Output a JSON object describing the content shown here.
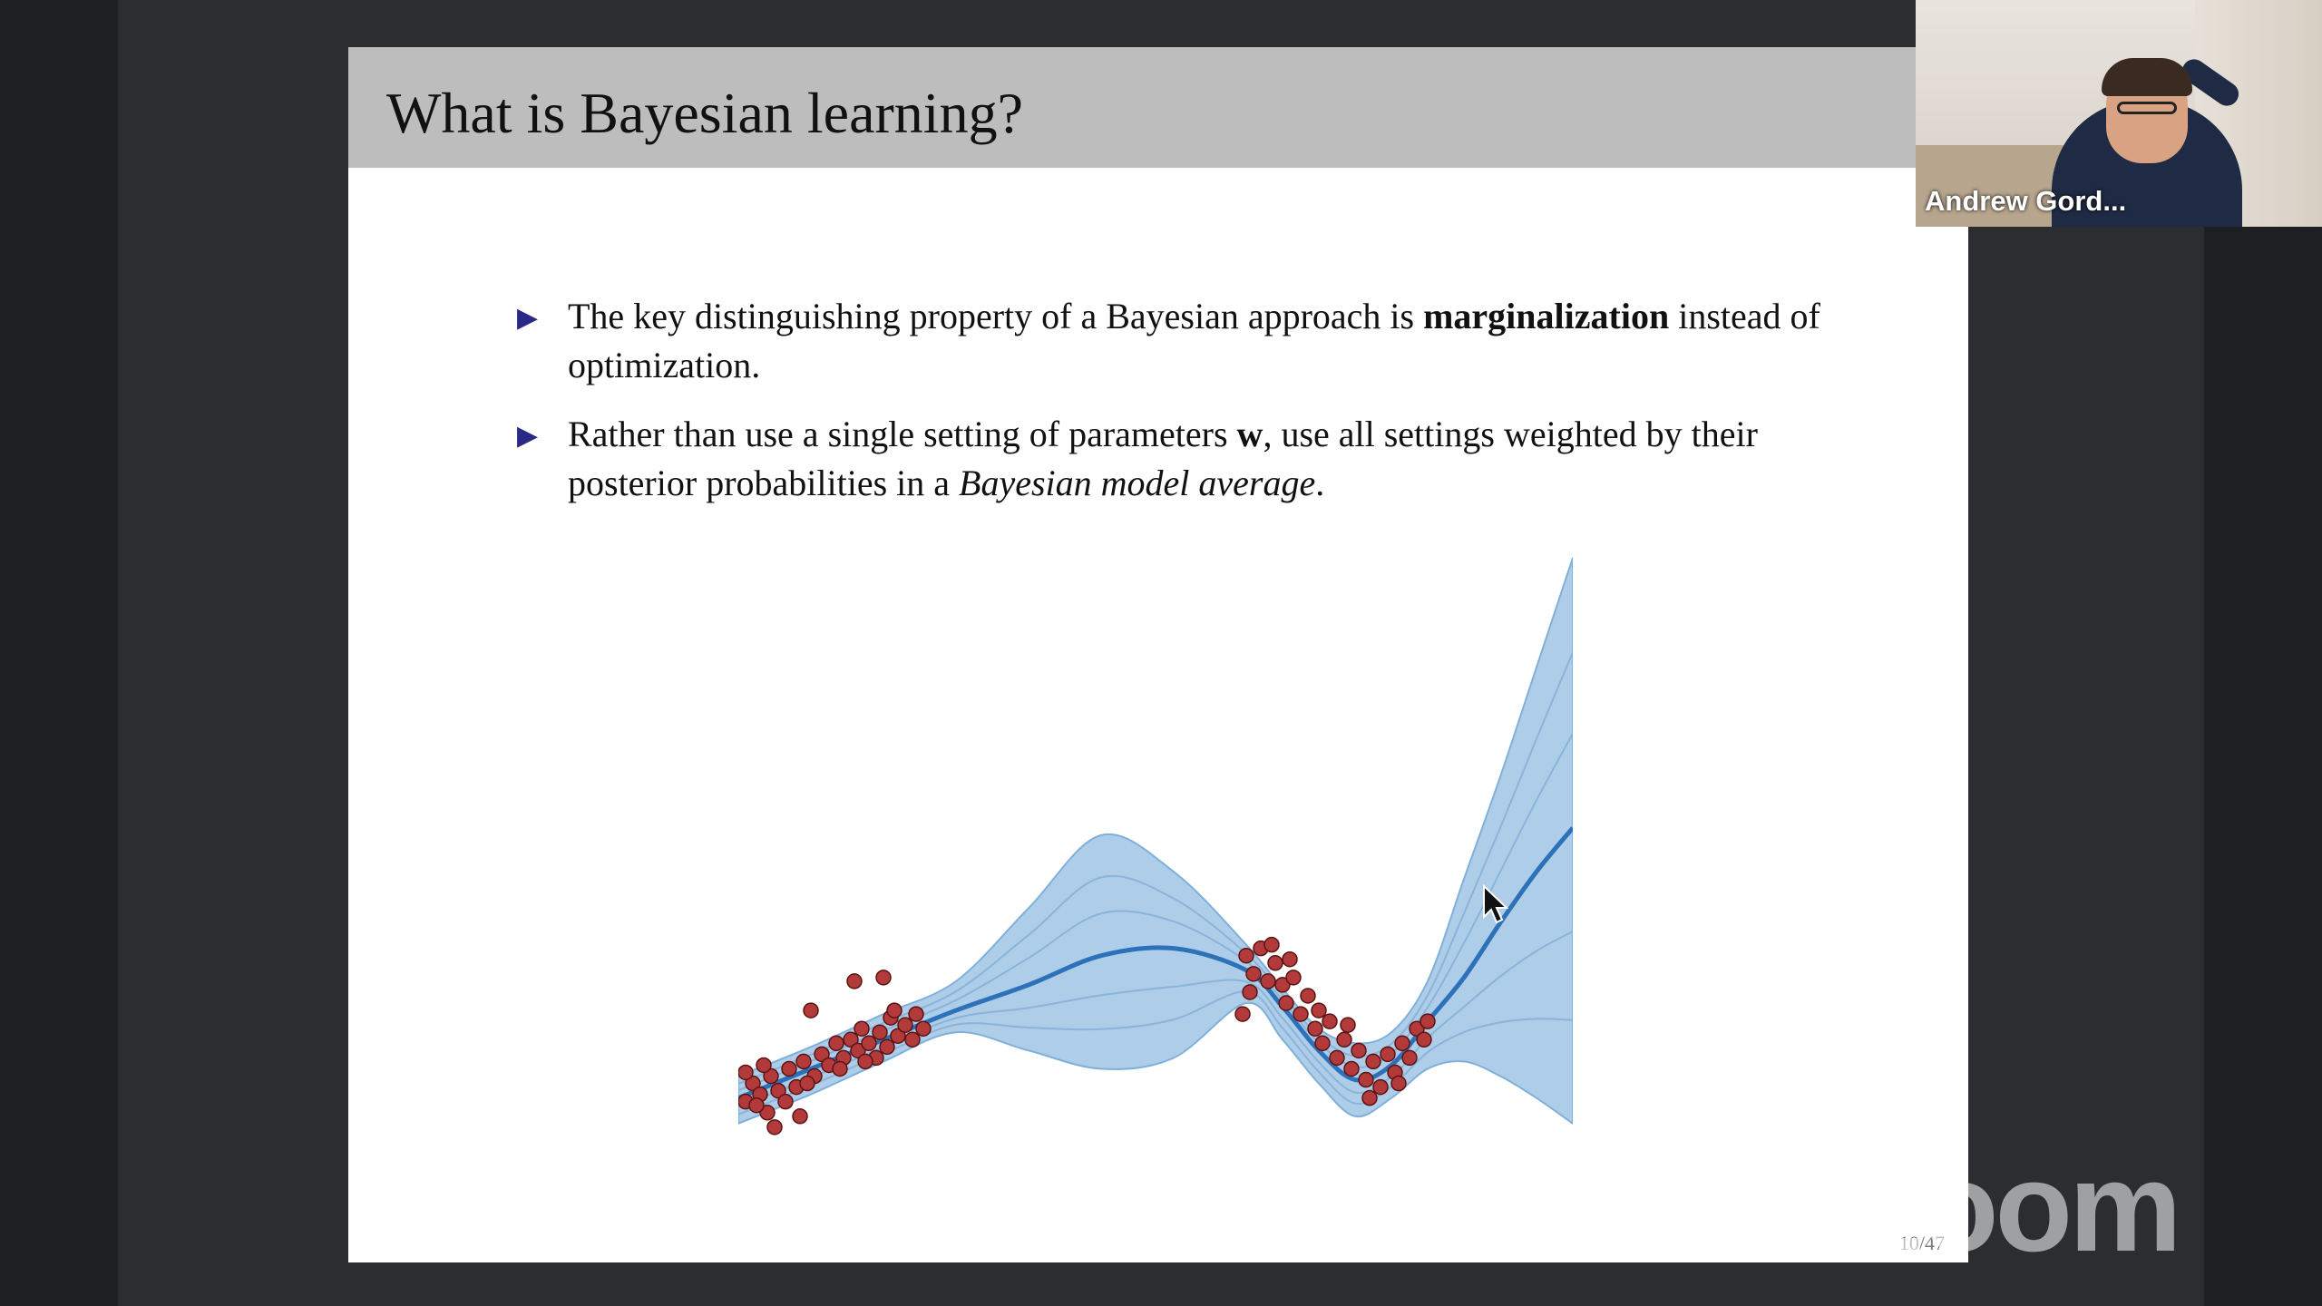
{
  "slide": {
    "title": "What is Bayesian learning?",
    "bullets": [
      {
        "text_1": "The key distinguishing property of a Bayesian approach is ",
        "bold": "marginalization",
        "text_2": " instead of optimization."
      },
      {
        "text_1": "Rather than use a single setting of parameters ",
        "bold": "w",
        "text_2": ", use all settings weighted by their posterior probabilities in a ",
        "italic": "Bayesian model average",
        "text_3": "."
      }
    ],
    "page_number": "10/47"
  },
  "video_tile": {
    "participant_name": "Andrew Gord..."
  },
  "watermark": "zoom",
  "colors": {
    "band_fill": "#aecde9",
    "mean_line": "#2d72b8",
    "points": "#b23a3a",
    "bullet_marker": "#2a2a86"
  },
  "chart_data": {
    "type": "scatter",
    "series": [
      {
        "points": [
          [
            -4.9,
            -1.55
          ],
          [
            -4.8,
            -1.3
          ],
          [
            -4.7,
            -1.45
          ],
          [
            -4.6,
            -1.7
          ],
          [
            -4.55,
            -1.2
          ],
          [
            -4.45,
            -1.4
          ],
          [
            -4.3,
            -1.1
          ],
          [
            -4.2,
            -1.35
          ],
          [
            -4.1,
            -1.0
          ],
          [
            -3.95,
            -1.2
          ],
          [
            -3.85,
            -0.9
          ],
          [
            -3.75,
            -1.05
          ],
          [
            -3.65,
            -0.75
          ],
          [
            -3.55,
            -0.95
          ],
          [
            -3.45,
            -0.7
          ],
          [
            -3.35,
            -0.85
          ],
          [
            -3.3,
            -0.55
          ],
          [
            -3.2,
            -0.75
          ],
          [
            -3.1,
            -0.95
          ],
          [
            -3.05,
            -0.6
          ],
          [
            -2.95,
            -0.8
          ],
          [
            -2.9,
            -0.4
          ],
          [
            -2.8,
            -0.65
          ],
          [
            -2.7,
            -0.5
          ],
          [
            -2.6,
            -0.7
          ],
          [
            -2.55,
            -0.35
          ],
          [
            -2.45,
            -0.55
          ],
          [
            -3.4,
            0.1
          ],
          [
            -3.0,
            0.15
          ],
          [
            -4.0,
            -0.3
          ],
          [
            -4.9,
            -1.15
          ],
          [
            -4.75,
            -1.6
          ],
          [
            -4.65,
            -1.05
          ],
          [
            -4.35,
            -1.55
          ],
          [
            -4.05,
            -1.3
          ],
          [
            -3.6,
            -1.1
          ],
          [
            -3.25,
            -1.0
          ],
          [
            -2.85,
            -0.3
          ],
          [
            -4.5,
            -1.9
          ],
          [
            -4.15,
            -1.75
          ],
          [
            2.0,
            0.45
          ],
          [
            2.1,
            0.2
          ],
          [
            2.2,
            0.55
          ],
          [
            2.3,
            0.1
          ],
          [
            2.4,
            0.35
          ],
          [
            2.5,
            0.05
          ],
          [
            2.55,
            -0.2
          ],
          [
            2.65,
            0.15
          ],
          [
            2.75,
            -0.35
          ],
          [
            2.85,
            -0.1
          ],
          [
            2.95,
            -0.55
          ],
          [
            3.05,
            -0.75
          ],
          [
            3.15,
            -0.45
          ],
          [
            3.25,
            -0.95
          ],
          [
            3.35,
            -0.7
          ],
          [
            3.45,
            -1.1
          ],
          [
            3.55,
            -0.85
          ],
          [
            3.65,
            -1.25
          ],
          [
            3.75,
            -1.0
          ],
          [
            3.85,
            -1.35
          ],
          [
            3.95,
            -0.9
          ],
          [
            4.05,
            -1.15
          ],
          [
            4.15,
            -0.75
          ],
          [
            4.25,
            -0.95
          ],
          [
            4.35,
            -0.55
          ],
          [
            4.45,
            -0.7
          ],
          [
            4.5,
            -0.45
          ],
          [
            1.95,
            -0.35
          ],
          [
            2.05,
            -0.05
          ],
          [
            2.35,
            0.6
          ],
          [
            2.6,
            0.4
          ],
          [
            3.0,
            -0.3
          ],
          [
            3.4,
            -0.5
          ],
          [
            3.7,
            -1.5
          ],
          [
            4.1,
            -1.3
          ]
        ]
      }
    ],
    "band": {
      "x": [
        -5,
        -4,
        -3,
        -2,
        -1,
        0,
        1,
        2,
        2.5,
        3,
        3.5,
        4,
        4.5,
        5,
        5.5,
        6,
        6.5
      ],
      "upper": [
        -1.2,
        -0.8,
        -0.35,
        0.1,
        1.1,
        2.1,
        1.6,
        0.6,
        0.0,
        -0.55,
        -0.75,
        -0.6,
        0.1,
        1.5,
        2.9,
        4.4,
        5.9
      ],
      "lower": [
        -1.85,
        -1.45,
        -1.0,
        -0.6,
        -0.85,
        -1.1,
        -0.95,
        -0.2,
        -0.7,
        -1.3,
        -1.75,
        -1.5,
        -1.1,
        -1.0,
        -1.2,
        -1.5,
        -1.85
      ],
      "mean": [
        -1.5,
        -1.1,
        -0.7,
        -0.3,
        0.05,
        0.45,
        0.55,
        0.25,
        -0.25,
        -0.85,
        -1.25,
        -1.05,
        -0.45,
        0.15,
        0.9,
        1.6,
        2.2
      ]
    },
    "xlim": [
      -5,
      6.5
    ],
    "ylim": [
      -2.2,
      6.0
    ],
    "grid": false
  }
}
